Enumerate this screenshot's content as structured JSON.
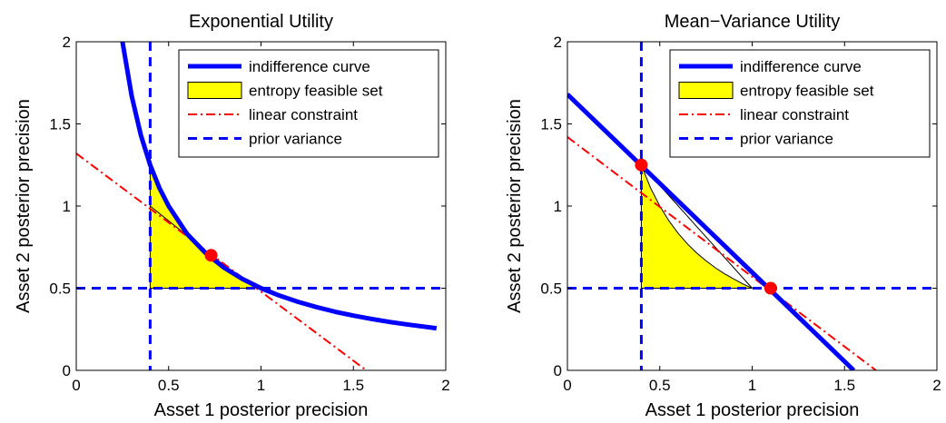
{
  "chart_data": [
    {
      "type": "line",
      "title": "Exponential Utility",
      "xlabel": "Asset 1 posterior precision",
      "ylabel": "Asset 2 posterior precision",
      "xlim": [
        0,
        2
      ],
      "ylim": [
        0,
        2
      ],
      "xticks": [
        0,
        0.5,
        1,
        1.5,
        2
      ],
      "yticks": [
        0,
        0.5,
        1,
        1.5,
        2
      ],
      "legend_position": "top-right",
      "legend": [
        "indifference curve",
        "entropy feasible set",
        "linear constraint",
        "prior variance"
      ],
      "colors": {
        "indifference": "#0000ff",
        "feasible_fill": "#ffff00",
        "constraint": "#ff0000",
        "prior": "#0000ff",
        "optimum": "#ff0000"
      },
      "indifference_curve": {
        "x": [
          0.25,
          0.3,
          0.35,
          0.4,
          0.45,
          0.5,
          0.6,
          0.7,
          0.8,
          0.9,
          1.0,
          1.1,
          1.2,
          1.3,
          1.4,
          1.5,
          1.6,
          1.7,
          1.8,
          1.95
        ],
        "y": [
          2.0,
          1.67,
          1.43,
          1.25,
          1.11,
          1.0,
          0.83,
          0.714,
          0.625,
          0.556,
          0.5,
          0.455,
          0.417,
          0.385,
          0.357,
          0.333,
          0.3125,
          0.294,
          0.278,
          0.256
        ]
      },
      "feasible_set": {
        "upper_x": [
          0.4,
          0.45,
          0.5,
          0.55,
          0.6,
          0.65,
          0.7,
          0.75,
          0.8,
          0.85,
          0.9,
          0.95,
          1.0
        ],
        "upper_y": [
          1.25,
          1.11,
          1.0,
          0.909,
          0.833,
          0.769,
          0.714,
          0.667,
          0.625,
          0.588,
          0.556,
          0.526,
          0.5
        ],
        "lower_x": [
          0.4,
          0.9
        ],
        "lower_y": [
          1.0,
          0.55
        ],
        "base_y": 0.5
      },
      "linear_constraint": {
        "x": [
          0,
          1.57
        ],
        "y": [
          1.32,
          0
        ]
      },
      "prior_variance": {
        "x": 0.4,
        "y": 0.5
      },
      "optimum": [
        {
          "x": 0.73,
          "y": 0.7
        }
      ]
    },
    {
      "type": "line",
      "title": "Mean−Variance Utility",
      "xlabel": "Asset 1 posterior precision",
      "ylabel": "Asset 2 posterior precision",
      "xlim": [
        0,
        2
      ],
      "ylim": [
        0,
        2
      ],
      "xticks": [
        0,
        0.5,
        1,
        1.5,
        2
      ],
      "yticks": [
        0,
        0.5,
        1,
        1.5,
        2
      ],
      "legend_position": "top-right",
      "legend": [
        "indifference curve",
        "entropy feasible set",
        "linear constraint",
        "prior variance"
      ],
      "colors": {
        "indifference": "#0000ff",
        "feasible_fill": "#ffff00",
        "constraint": "#ff0000",
        "prior": "#0000ff",
        "optimum": "#ff0000"
      },
      "indifference_curve": {
        "x": [
          0,
          1.55
        ],
        "y": [
          1.68,
          0
        ]
      },
      "feasible_set": {
        "upper_x": [
          0.4,
          0.45,
          0.5,
          0.55,
          0.6,
          0.65,
          0.7,
          0.75,
          0.8,
          0.85,
          0.9,
          0.95,
          1.0
        ],
        "upper_y": [
          1.25,
          1.11,
          1.0,
          0.909,
          0.833,
          0.769,
          0.714,
          0.667,
          0.625,
          0.588,
          0.556,
          0.526,
          0.5
        ],
        "lower_x": [
          0.4,
          1.0
        ],
        "lower_y": [
          1.25,
          0.5
        ],
        "base_y": 0.5
      },
      "linear_constraint": {
        "x": [
          0,
          1.67
        ],
        "y": [
          1.42,
          0
        ]
      },
      "prior_variance": {
        "x": 0.4,
        "y": 0.5
      },
      "optimum": [
        {
          "x": 0.4,
          "y": 1.25
        },
        {
          "x": 1.1,
          "y": 0.5
        }
      ]
    }
  ]
}
